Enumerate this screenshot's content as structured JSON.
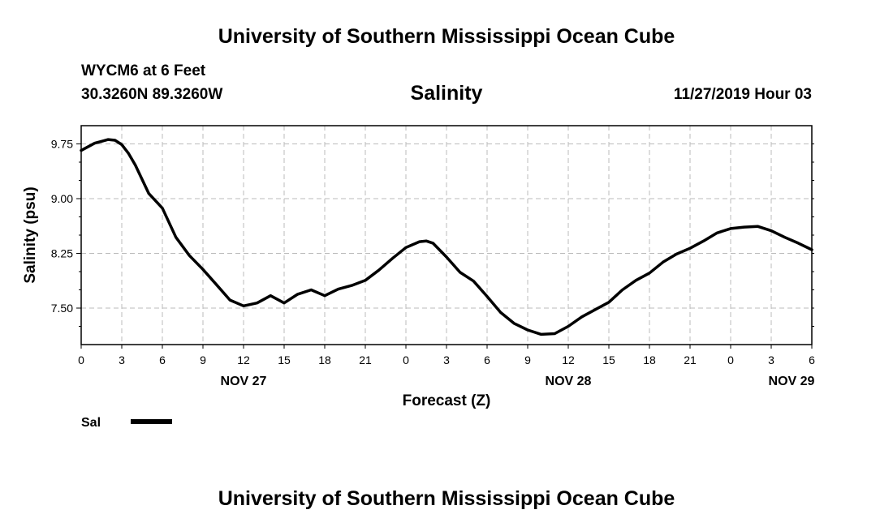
{
  "header": {
    "title": "University of Southern Mississippi Ocean Cube",
    "station": "WYCM6 at 6 Feet",
    "coords": "30.3260N 89.3260W",
    "plot_title": "Salinity",
    "timestamp": "11/27/2019 Hour 03"
  },
  "footer": {
    "title": "University of Southern Mississippi Ocean Cube"
  },
  "colors": {
    "line": "#000000",
    "grid": "#bbbbbb",
    "axis": "#000000"
  },
  "chart_data": {
    "type": "line",
    "title": "Salinity",
    "xlabel": "Forecast (Z)",
    "ylabel": "Salinity (psu)",
    "xlim": [
      0,
      54
    ],
    "ylim": [
      7.0,
      10.0
    ],
    "x_ticks": [
      0,
      3,
      6,
      9,
      12,
      15,
      18,
      21,
      24,
      27,
      30,
      33,
      36,
      39,
      42,
      45,
      48,
      51,
      54
    ],
    "x_tick_labels": [
      "0",
      "3",
      "6",
      "9",
      "12",
      "15",
      "18",
      "21",
      "0",
      "3",
      "6",
      "9",
      "12",
      "15",
      "18",
      "21",
      "0",
      "3",
      "6"
    ],
    "y_ticks": [
      7.5,
      8.25,
      9.0,
      9.75
    ],
    "y_tick_labels": [
      "7.50",
      "8.25",
      "9.00",
      "9.75"
    ],
    "day_labels": [
      {
        "x": 12,
        "label": "NOV 27"
      },
      {
        "x": 36,
        "label": "NOV 28"
      },
      {
        "x": 52.5,
        "label": "NOV 29"
      }
    ],
    "legend": [
      {
        "name": "Sal",
        "position": "bottom-left"
      }
    ],
    "series": [
      {
        "name": "Sal",
        "x": [
          0,
          1,
          2,
          2.5,
          3,
          3.5,
          4,
          5,
          6,
          7,
          8,
          9,
          10,
          11,
          12,
          13,
          14,
          15,
          16,
          17,
          18,
          19,
          20,
          21,
          22,
          23,
          24,
          25,
          25.5,
          26,
          27,
          28,
          29,
          30,
          31,
          32,
          33,
          34,
          35,
          36,
          37,
          38,
          39,
          40,
          41,
          42,
          43,
          44,
          45,
          46,
          47,
          48,
          49,
          50,
          51,
          52,
          53,
          54
        ],
        "values": [
          9.66,
          9.76,
          9.81,
          9.8,
          9.74,
          9.62,
          9.46,
          9.07,
          8.87,
          8.47,
          8.22,
          8.03,
          7.82,
          7.61,
          7.53,
          7.57,
          7.67,
          7.57,
          7.69,
          7.75,
          7.67,
          7.76,
          7.81,
          7.88,
          8.02,
          8.18,
          8.33,
          8.41,
          8.42,
          8.39,
          8.2,
          7.99,
          7.87,
          7.66,
          7.44,
          7.29,
          7.2,
          7.14,
          7.15,
          7.25,
          7.38,
          7.48,
          7.58,
          7.75,
          7.88,
          7.98,
          8.13,
          8.24,
          8.32,
          8.42,
          8.53,
          8.59,
          8.61,
          8.62,
          8.56,
          8.47,
          8.39,
          8.3
        ]
      }
    ]
  }
}
